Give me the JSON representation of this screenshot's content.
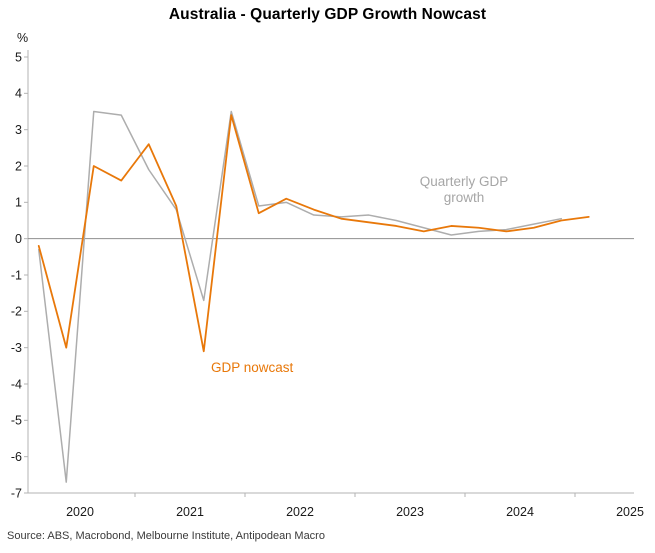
{
  "title": "Australia - Quarterly GDP Growth Nowcast",
  "source": "Source: ABS, Macrobond, Melbourne Institute, Antipodean Macro",
  "chart_data": {
    "type": "line",
    "title": "Australia - Quarterly GDP Growth Nowcast",
    "xlabel": "",
    "ylabel": "%",
    "ylim": [
      -7,
      5
    ],
    "y_ticks": [
      5,
      4,
      3,
      2,
      1,
      0,
      -1,
      -2,
      -3,
      -4,
      -5,
      -6,
      -7
    ],
    "x_year_labels": [
      "2020",
      "2021",
      "2022",
      "2023",
      "2024",
      "2025"
    ],
    "grid": "none",
    "zero_line": true,
    "legend_position": "inline-annotations",
    "categories": [
      "2020 Q1",
      "2020 Q2",
      "2020 Q3",
      "2020 Q4",
      "2021 Q1",
      "2021 Q2",
      "2021 Q3",
      "2021 Q4",
      "2022 Q1",
      "2022 Q2",
      "2022 Q3",
      "2022 Q4",
      "2023 Q1",
      "2023 Q2",
      "2023 Q3",
      "2023 Q4",
      "2024 Q1",
      "2024 Q2",
      "2024 Q3",
      "2024 Q4",
      "2025 Q1"
    ],
    "series": [
      {
        "name": "Quarterly GDP growth",
        "color": "#adadad",
        "values": [
          -0.3,
          -6.7,
          3.5,
          3.4,
          1.9,
          0.8,
          -1.7,
          3.5,
          0.9,
          1.0,
          0.65,
          0.6,
          0.65,
          0.5,
          0.3,
          0.1,
          0.2,
          0.25,
          0.4,
          0.55,
          null
        ]
      },
      {
        "name": "GDP nowcast",
        "color": "#e8780a",
        "values": [
          -0.2,
          -3.0,
          2.0,
          1.6,
          2.6,
          0.9,
          -3.1,
          3.4,
          0.7,
          1.1,
          0.8,
          0.55,
          0.45,
          0.35,
          0.2,
          0.35,
          0.3,
          0.2,
          0.3,
          0.5,
          0.6
        ]
      }
    ],
    "annotations": [
      {
        "text": "Quarterly GDP growth",
        "series": "Quarterly GDP growth",
        "color": "#a6a6a6"
      },
      {
        "text": "GDP nowcast",
        "series": "GDP nowcast",
        "color": "#e8780a"
      }
    ],
    "colors": {
      "axis": "#b3b3b3",
      "zero": "#8f8f8f",
      "text": "#1a1a1a"
    }
  }
}
